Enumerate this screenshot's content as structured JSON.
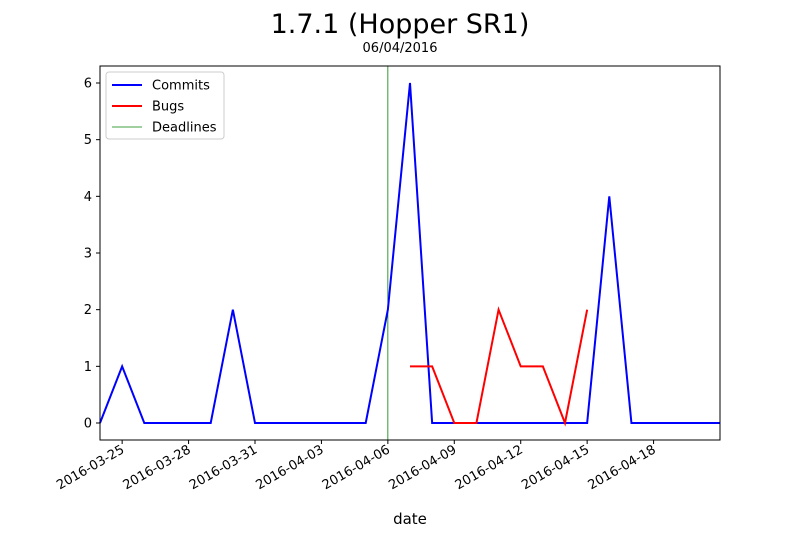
{
  "chart_data": {
    "type": "line",
    "title": "1.7.1 (Hopper SR1)",
    "subtitle": "06/04/2016",
    "xlabel": "date",
    "ylabel": "",
    "x_tick_labels": [
      "2016-03-25",
      "2016-03-28",
      "2016-03-31",
      "2016-04-03",
      "2016-04-06",
      "2016-04-09",
      "2016-04-12",
      "2016-04-15",
      "2016-04-18"
    ],
    "y_ticks": [
      0,
      1,
      2,
      3,
      4,
      5,
      6
    ],
    "xlim": [
      "2016-03-24",
      "2016-04-21"
    ],
    "ylim": [
      -0.3,
      6.3
    ],
    "grid": false,
    "legend_position": "top-left",
    "series": [
      {
        "name": "Commits",
        "color": "#0000ff",
        "x": [
          "2016-03-24",
          "2016-03-25",
          "2016-03-26",
          "2016-03-27",
          "2016-03-28",
          "2016-03-29",
          "2016-03-30",
          "2016-03-31",
          "2016-04-01",
          "2016-04-02",
          "2016-04-03",
          "2016-04-04",
          "2016-04-05",
          "2016-04-06",
          "2016-04-07",
          "2016-04-08",
          "2016-04-09",
          "2016-04-10",
          "2016-04-11",
          "2016-04-12",
          "2016-04-13",
          "2016-04-14",
          "2016-04-15",
          "2016-04-16",
          "2016-04-17",
          "2016-04-18",
          "2016-04-19",
          "2016-04-20",
          "2016-04-21"
        ],
        "values": [
          0,
          1,
          0,
          0,
          0,
          0,
          2,
          0,
          0,
          0,
          0,
          0,
          0,
          2,
          6,
          0,
          0,
          0,
          0,
          0,
          0,
          0,
          0,
          4,
          0,
          0,
          0,
          0,
          0
        ]
      },
      {
        "name": "Bugs",
        "color": "#ff0000",
        "x": [
          "2016-04-07",
          "2016-04-08",
          "2016-04-09",
          "2016-04-10",
          "2016-04-11",
          "2016-04-12",
          "2016-04-13",
          "2016-04-14",
          "2016-04-15"
        ],
        "values": [
          1,
          1,
          0,
          0,
          2,
          1,
          1,
          0,
          2
        ]
      }
    ],
    "deadlines": {
      "name": "Deadlines",
      "color": "#008000",
      "x": [
        "2016-04-06"
      ]
    }
  }
}
